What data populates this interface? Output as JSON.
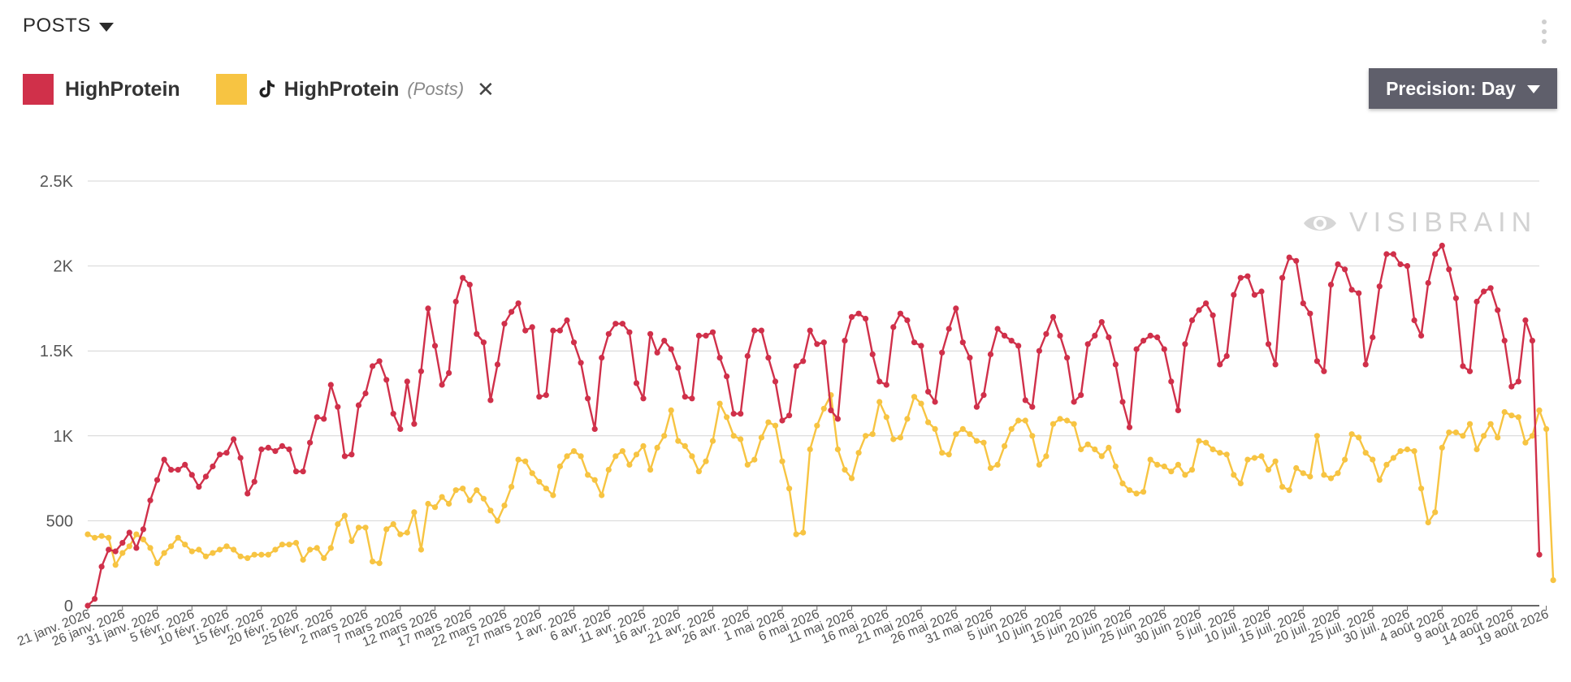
{
  "header": {
    "title": "POSTS"
  },
  "legend": {
    "items": [
      {
        "label": "HighProtein",
        "color": "#d0304a"
      },
      {
        "label": "HighProtein",
        "sub": "(Posts)",
        "color": "#f7c442",
        "icon": "tiktok-icon",
        "removable": true
      }
    ]
  },
  "precision_button": {
    "label": "Precision: Day"
  },
  "watermark": {
    "text": "VISIBRAIN"
  },
  "chart_data": {
    "type": "line",
    "y_ticks": [
      "0",
      "500",
      "1K",
      "1.5K",
      "2K",
      "2.5K"
    ],
    "ylim": [
      0,
      2500
    ],
    "x_ticks": [
      "21 janv. 2026",
      "26 janv. 2026",
      "31 janv. 2026",
      "5 févr. 2026",
      "10 févr. 2026",
      "15 févr. 2026",
      "20 févr. 2026",
      "25 févr. 2026",
      "2 mars 2026",
      "7 mars 2026",
      "12 mars 2026",
      "17 mars 2026",
      "22 mars 2026",
      "27 mars 2026",
      "1 avr. 2026",
      "6 avr. 2026",
      "11 avr. 2026",
      "16 avr. 2026",
      "21 avr. 2026",
      "26 avr. 2026",
      "1 mai 2026",
      "6 mai 2026",
      "11 mai 2026",
      "16 mai 2026",
      "21 mai 2026",
      "26 mai 2026",
      "31 mai 2026",
      "5 juin 2026",
      "10 juin 2026",
      "15 juin 2026",
      "20 juin 2026",
      "25 juin 2026",
      "30 juin 2026",
      "5 juil. 2026",
      "10 juil. 2026",
      "15 juil. 2026",
      "20 juil. 2026",
      "25 juil. 2026",
      "30 juil. 2026",
      "4 août 2026",
      "9 août 2026",
      "14 août 2026",
      "19 août 2026"
    ],
    "x_start": "21 janv. 2026",
    "x_end": "19 août 2026",
    "grid": true,
    "series": [
      {
        "name": "HighProtein",
        "color": "#d0304a",
        "values": [
          0,
          40,
          230,
          330,
          320,
          370,
          430,
          340,
          450,
          620,
          740,
          860,
          800,
          800,
          830,
          770,
          700,
          760,
          820,
          890,
          900,
          980,
          870,
          660,
          730,
          920,
          930,
          910,
          940,
          920,
          790,
          790,
          960,
          1110,
          1100,
          1300,
          1170,
          880,
          890,
          1180,
          1250,
          1410,
          1440,
          1330,
          1130,
          1040,
          1320,
          1070,
          1380,
          1750,
          1530,
          1300,
          1370,
          1790,
          1930,
          1890,
          1600,
          1550,
          1210,
          1420,
          1660,
          1730,
          1780,
          1620,
          1640,
          1230,
          1240,
          1620,
          1620,
          1680,
          1550,
          1430,
          1220,
          1040,
          1460,
          1600,
          1660,
          1660,
          1610,
          1310,
          1220,
          1600,
          1490,
          1560,
          1510,
          1400,
          1230,
          1220,
          1590,
          1590,
          1610,
          1460,
          1350,
          1130,
          1130,
          1470,
          1620,
          1620,
          1460,
          1320,
          1090,
          1120,
          1410,
          1440,
          1620,
          1540,
          1550,
          1150,
          1100,
          1560,
          1700,
          1720,
          1690,
          1480,
          1320,
          1300,
          1640,
          1720,
          1680,
          1550,
          1530,
          1260,
          1200,
          1490,
          1630,
          1750,
          1550,
          1460,
          1170,
          1240,
          1480,
          1630,
          1590,
          1560,
          1530,
          1210,
          1170,
          1500,
          1600,
          1700,
          1590,
          1460,
          1200,
          1240,
          1540,
          1590,
          1670,
          1580,
          1420,
          1200,
          1050,
          1510,
          1560,
          1590,
          1580,
          1510,
          1320,
          1150,
          1540,
          1680,
          1740,
          1780,
          1710,
          1420,
          1470,
          1830,
          1930,
          1940,
          1830,
          1850,
          1540,
          1420,
          1930,
          2050,
          2030,
          1780,
          1720,
          1440,
          1380,
          1890,
          2010,
          1980,
          1860,
          1840,
          1420,
          1580,
          1880,
          2070,
          2070,
          2010,
          2000,
          1680,
          1590,
          1900,
          2070,
          2120,
          1980,
          1810,
          1410,
          1380,
          1790,
          1850,
          1870,
          1740,
          1560,
          1290,
          1320,
          1680,
          1560,
          300
        ]
      },
      {
        "name": "HighProtein (Posts)",
        "color": "#f7c442",
        "values": [
          420,
          400,
          410,
          400,
          240,
          310,
          350,
          420,
          390,
          340,
          250,
          310,
          350,
          400,
          360,
          320,
          330,
          290,
          310,
          330,
          350,
          330,
          290,
          280,
          300,
          300,
          300,
          330,
          360,
          360,
          370,
          270,
          330,
          340,
          280,
          340,
          480,
          530,
          380,
          460,
          460,
          260,
          250,
          450,
          480,
          420,
          430,
          550,
          330,
          600,
          580,
          640,
          600,
          680,
          690,
          620,
          680,
          630,
          560,
          500,
          590,
          700,
          860,
          850,
          780,
          730,
          690,
          650,
          820,
          880,
          910,
          880,
          770,
          740,
          650,
          800,
          880,
          910,
          830,
          890,
          940,
          800,
          930,
          1000,
          1150,
          970,
          940,
          880,
          790,
          850,
          970,
          1190,
          1110,
          1000,
          980,
          830,
          860,
          990,
          1080,
          1060,
          850,
          690,
          420,
          430,
          920,
          1060,
          1160,
          1240,
          920,
          800,
          750,
          900,
          1000,
          1010,
          1200,
          1110,
          980,
          990,
          1100,
          1230,
          1190,
          1080,
          1040,
          900,
          890,
          1010,
          1040,
          1010,
          970,
          960,
          810,
          830,
          940,
          1040,
          1090,
          1090,
          1000,
          830,
          880,
          1070,
          1100,
          1090,
          1070,
          920,
          950,
          920,
          880,
          930,
          820,
          720,
          680,
          660,
          670,
          860,
          830,
          820,
          790,
          830,
          770,
          800,
          970,
          960,
          920,
          900,
          890,
          770,
          720,
          860,
          870,
          880,
          800,
          850,
          700,
          680,
          810,
          780,
          760,
          1000,
          770,
          750,
          780,
          860,
          1010,
          990,
          900,
          860,
          740,
          830,
          870,
          910,
          920,
          910,
          690,
          490,
          550,
          930,
          1020,
          1020,
          1000,
          1070,
          920,
          1000,
          1070,
          990,
          1140,
          1120,
          1110,
          960,
          1000,
          1150,
          1040,
          150
        ]
      }
    ]
  }
}
